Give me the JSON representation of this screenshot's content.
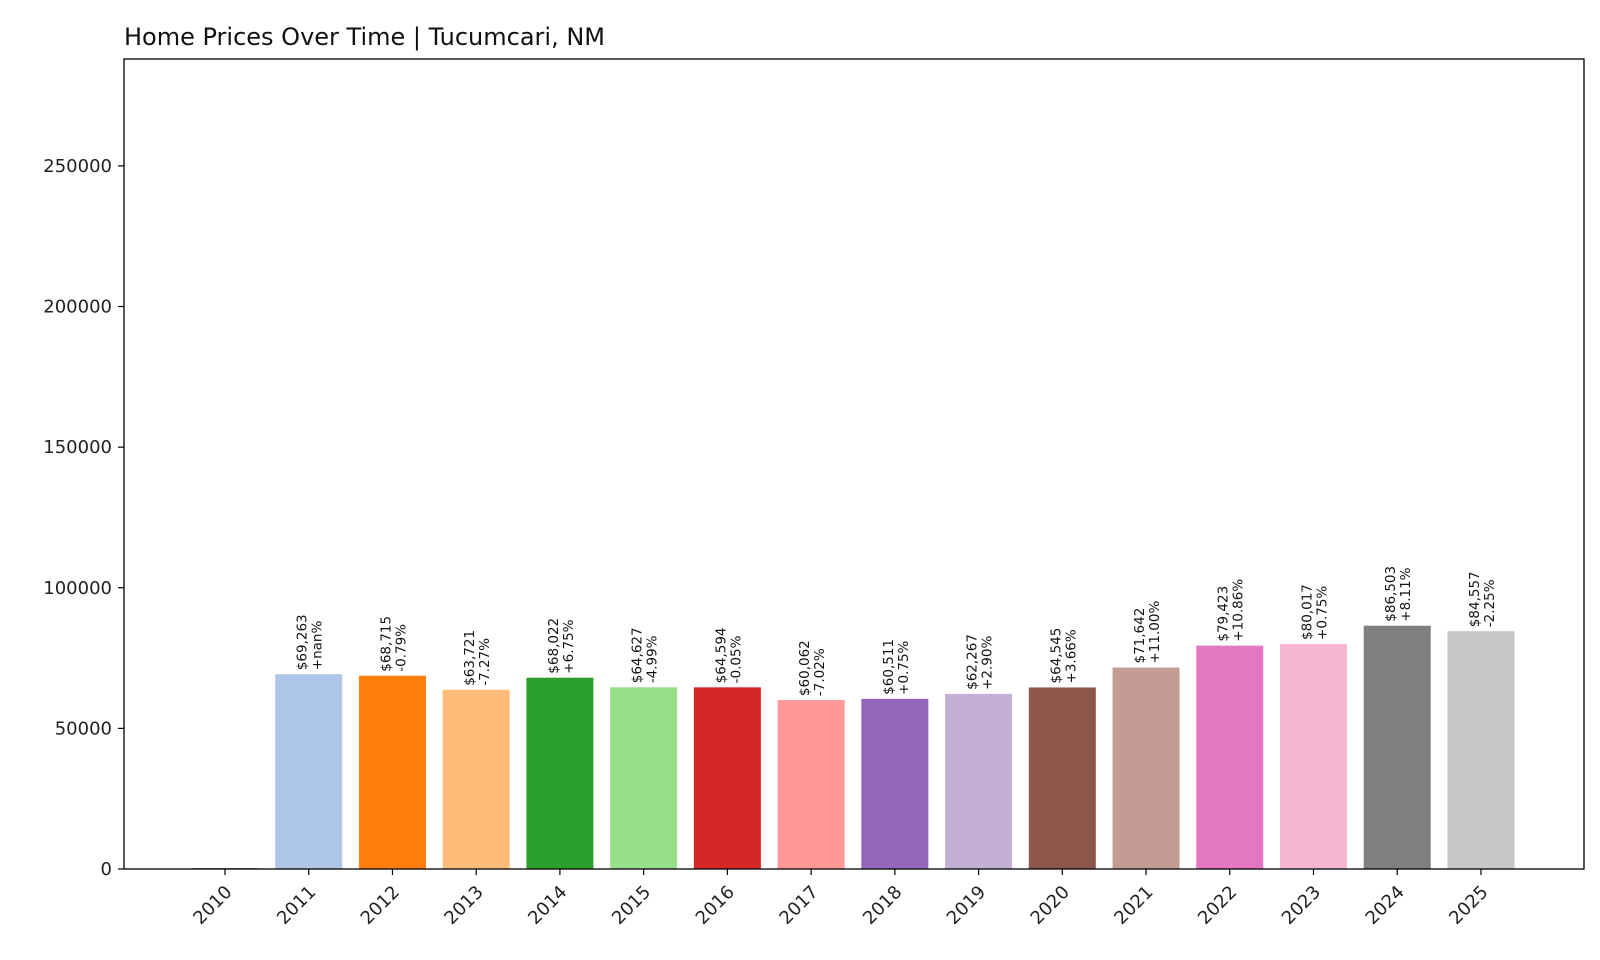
{
  "chart_data": {
    "type": "bar",
    "title": "Home Prices Over Time | Tucumcari, NM",
    "xlabel": "",
    "ylabel": "",
    "ylim": [
      0,
      288000
    ],
    "yticks": [
      0,
      50000,
      100000,
      150000,
      200000,
      250000
    ],
    "categories": [
      "2010",
      "2011",
      "2012",
      "2013",
      "2014",
      "2015",
      "2016",
      "2017",
      "2018",
      "2019",
      "2020",
      "2021",
      "2022",
      "2023",
      "2024",
      "2025"
    ],
    "values": [
      0,
      69263,
      68715,
      63721,
      68022,
      64627,
      64594,
      60062,
      60511,
      62267,
      64545,
      71642,
      79423,
      80017,
      86503,
      84557
    ],
    "price_labels": [
      "",
      "$69,263",
      "$68,715",
      "$63,721",
      "$68,022",
      "$64,627",
      "$64,594",
      "$60,062",
      "$60,511",
      "$62,267",
      "$64,545",
      "$71,642",
      "$79,423",
      "$80,017",
      "$86,503",
      "$84,557"
    ],
    "change_labels": [
      "",
      "+nan%",
      "-0.79%",
      "-7.27%",
      "+6.75%",
      "-4.99%",
      "-0.05%",
      "-7.02%",
      "+0.75%",
      "+2.90%",
      "+3.66%",
      "+11.00%",
      "+10.86%",
      "+0.75%",
      "+8.11%",
      "-2.25%"
    ],
    "colors": [
      "#1f77b4",
      "#aec7e8",
      "#ff7f0e",
      "#ffbb78",
      "#2ca02c",
      "#98df8a",
      "#d62728",
      "#ff9896",
      "#9467bd",
      "#c5b0d5",
      "#8c564b",
      "#c49c94",
      "#e377c2",
      "#f7b6d2",
      "#7f7f7f",
      "#c7c7c7"
    ],
    "grid": false,
    "legend": "none"
  }
}
